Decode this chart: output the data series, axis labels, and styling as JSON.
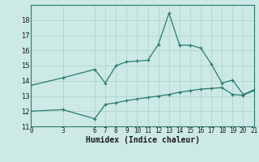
{
  "xlabel": "Humidex (Indice chaleur)",
  "bg_color": "#cce9e5",
  "grid_color": "#b0d4cf",
  "line_color": "#2a7a70",
  "xlim": [
    0,
    21
  ],
  "ylim": [
    11,
    19
  ],
  "yticks": [
    11,
    12,
    13,
    14,
    15,
    16,
    17,
    18
  ],
  "xticks": [
    0,
    3,
    6,
    7,
    8,
    9,
    10,
    11,
    12,
    13,
    14,
    15,
    16,
    17,
    18,
    19,
    20,
    21
  ],
  "line1_x": [
    0,
    3,
    6,
    7,
    8,
    9,
    10,
    11,
    12,
    13,
    14,
    15,
    16,
    17,
    18,
    19,
    20,
    21
  ],
  "line1_y": [
    13.7,
    14.2,
    14.75,
    13.85,
    15.0,
    15.25,
    15.3,
    15.35,
    16.4,
    18.45,
    16.35,
    16.35,
    16.15,
    15.1,
    13.85,
    14.05,
    13.1,
    13.4
  ],
  "line2_x": [
    0,
    3,
    6,
    7,
    8,
    9,
    10,
    11,
    12,
    13,
    14,
    15,
    16,
    17,
    18,
    19,
    20,
    21
  ],
  "line2_y": [
    12.0,
    12.1,
    11.5,
    12.45,
    12.55,
    12.7,
    12.8,
    12.9,
    13.0,
    13.1,
    13.25,
    13.35,
    13.45,
    13.5,
    13.55,
    13.1,
    13.05,
    13.35
  ],
  "tick_fontsize": 6,
  "xlabel_fontsize": 7
}
